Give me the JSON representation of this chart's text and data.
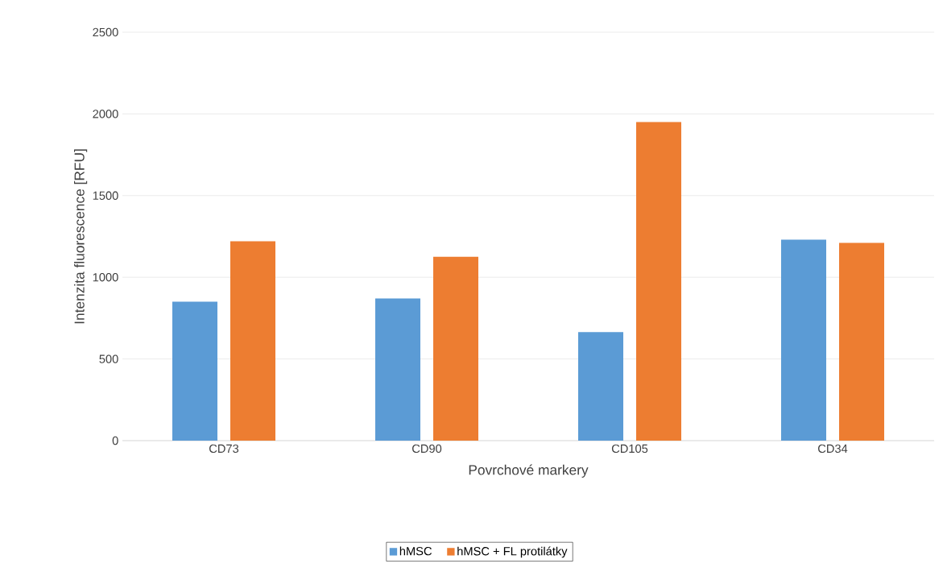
{
  "chart_data": {
    "type": "bar",
    "categories": [
      "CD73",
      "CD90",
      "CD105",
      "CD34"
    ],
    "series": [
      {
        "name": "hMSC",
        "color": "#5b9bd5",
        "values": [
          850,
          870,
          665,
          1230
        ]
      },
      {
        "name": "hMSC + FL protilátky",
        "color": "#ed7d31",
        "values": [
          1220,
          1125,
          1950,
          1210
        ]
      }
    ],
    "xlabel": "Povrchové markery",
    "ylabel": "Intenzita fluorescence [RFU]",
    "ylim": [
      0,
      2500
    ],
    "yticks": [
      0,
      500,
      1000,
      1500,
      2000,
      2500
    ],
    "grid": "y",
    "legend": "bottom"
  }
}
